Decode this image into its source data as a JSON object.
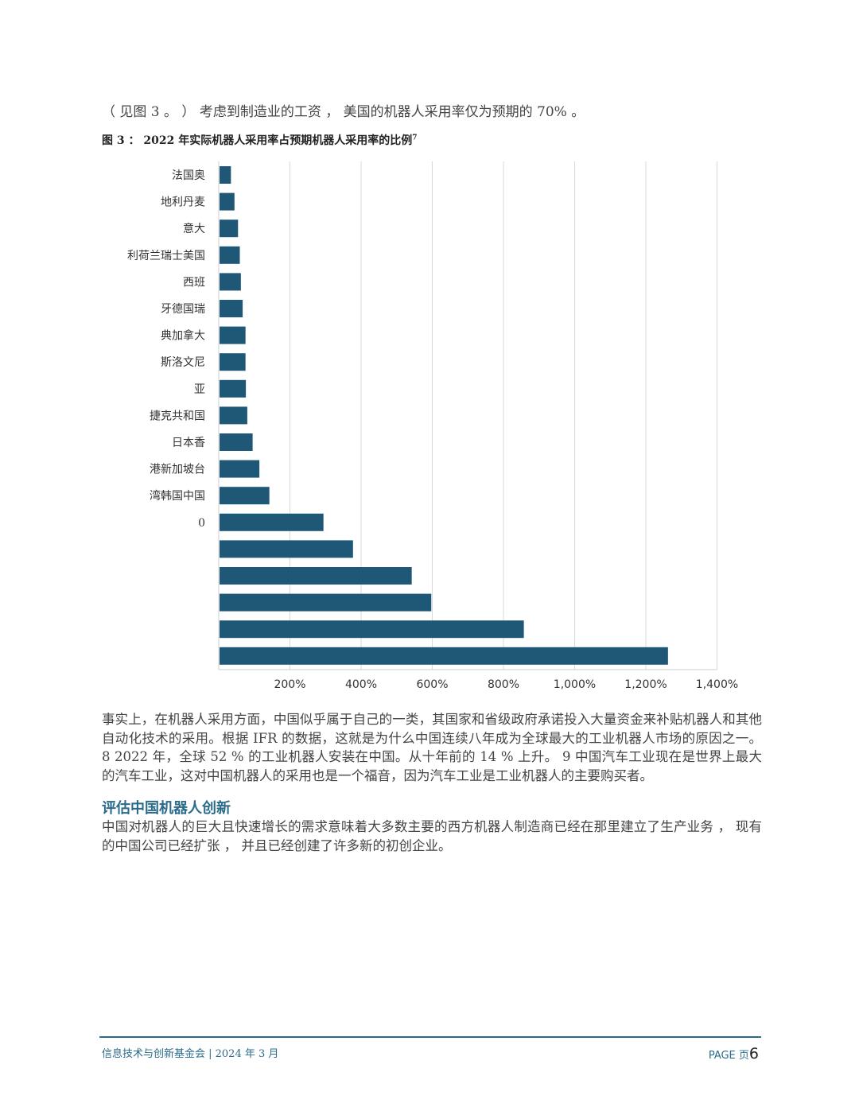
{
  "intro": "（ 见图 3 。 ） 考虑到制造业的工资 ， 美国的机器人采用率仅为预期的 70% 。",
  "figure": {
    "title": "图 3 ： 2022 年实际机器人采用率占预期机器人采用率的比例",
    "title_sup": "7"
  },
  "chart_data": {
    "type": "bar",
    "orientation": "horizontal",
    "title": "2022 年实际机器人采用率占预期机器人采用率的比例",
    "category_labels": [
      "法国奥",
      "地利丹麦",
      "意大",
      "利荷兰瑞士美国",
      "西班",
      "牙德国瑞",
      "典加拿大",
      "斯洛文尼",
      "亚",
      "捷克共和国",
      "日本香",
      "港新加坡台",
      "湾韩国中国",
      "0",
      "",
      "",
      "",
      "",
      ""
    ],
    "values": [
      32,
      42,
      52,
      57,
      60,
      65,
      73,
      73,
      74,
      78,
      93,
      112,
      140,
      292,
      375,
      540,
      595,
      855,
      1260
    ],
    "xticks": [
      "200%",
      "400%",
      "600%",
      "800%",
      "1,000%",
      "1,200%",
      "1,400%"
    ],
    "xtick_values": [
      200,
      400,
      600,
      800,
      1000,
      1200,
      1400
    ],
    "xlim": [
      0,
      1400
    ],
    "bar_color": "#1f5777",
    "grid": true
  },
  "paragraph1": "事实上，在机器人采用方面，中国似乎属于自己的一类，其国家和省级政府承诺投入大量资金来补贴机器人和其他自动化技术的采用。根据 IFR 的数据，这就是为什么中国连续八年成为全球最大的工业机器人市场的原因之一。 8 2022 年，全球 52 % 的工业机器人安装在中国。从十年前的 14 % 上升。 9 中国汽车工业现在是世界上最大的汽车工业，这对中国机器人的采用也是一个福音，因为汽车工业是工业机器人的主要购买者。",
  "section_heading": "评估中国机器人创新",
  "paragraph2": "中国对机器人的巨大且快速增长的需求意味着大多数主要的西方机器人制造商已经在那里建立了生产业务 ， 现有的中国公司已经扩张 ， 并且已经创建了许多新的初创企业。",
  "footer": {
    "left": "信息技术与创新基金会 | 2024 年 3 月",
    "page_label": "PAGE 页",
    "page_number": "6"
  }
}
